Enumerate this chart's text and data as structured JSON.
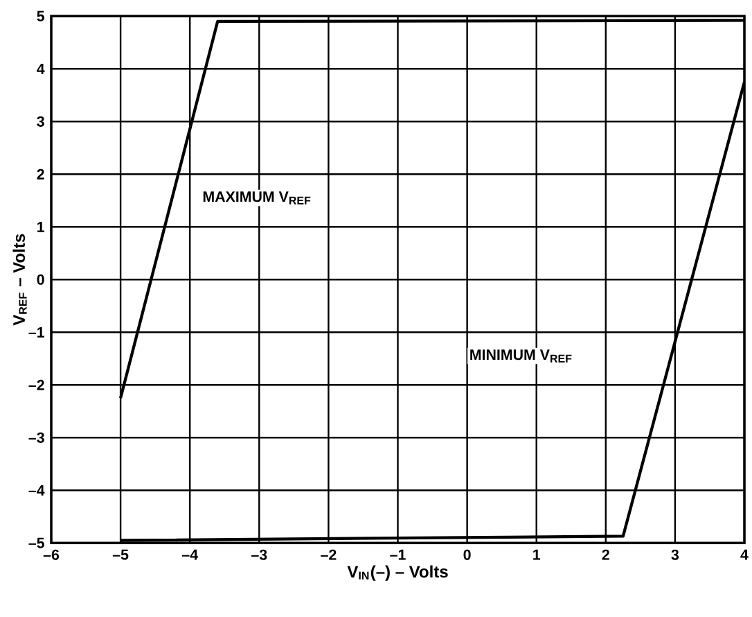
{
  "chart_data": {
    "type": "line",
    "xlabel": "V$_{IN}$(–) – Volts",
    "ylabel": "V$_{REF}$ – Volts",
    "series": [
      {
        "color": "#000000",
        "x": [
          -5,
          -3.6,
          4
        ],
        "values": [
          -2.25,
          4.9,
          4.92
        ]
      },
      {
        "color": "#000000",
        "x": [
          -5,
          2.25,
          4
        ],
        "values": [
          -4.95,
          -4.87,
          3.75
        ]
      }
    ],
    "annotations": [
      "MAXIMUM V$_{REF}$",
      "MINIMUM V$_{REF}$"
    ],
    "xlim": [
      -6,
      4
    ],
    "ylim": [
      -5,
      5
    ],
    "xticks": [
      {
        "value": -6,
        "label": "–6"
      },
      {
        "value": -5,
        "label": "–5"
      },
      {
        "value": -4,
        "label": "–4"
      },
      {
        "value": -3,
        "label": "–3"
      },
      {
        "value": -2,
        "label": "–2"
      },
      {
        "value": -1,
        "label": "–1"
      },
      0,
      1,
      2,
      3,
      4
    ],
    "yticks": [
      {
        "value": -5,
        "label": "–5"
      },
      {
        "value": -4,
        "label": "–4"
      },
      {
        "value": -3,
        "label": "–3"
      },
      {
        "value": -2,
        "label": "–2"
      },
      {
        "value": -1,
        "label": "–1"
      },
      0,
      1,
      2,
      3,
      4,
      5
    ],
    "grid": true,
    "marker": "none",
    "line_style": "solid"
  }
}
